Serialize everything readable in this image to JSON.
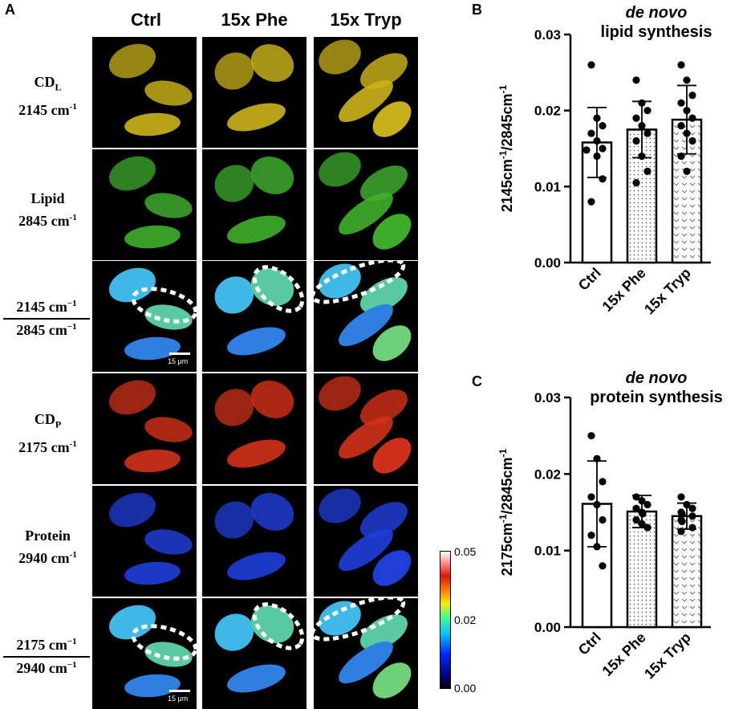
{
  "panel_a": {
    "letter": "A",
    "columns": [
      "Ctrl",
      "15x Phe",
      "15x Tryp"
    ],
    "rows": [
      {
        "label_main": "CD",
        "label_sub": "L",
        "label_line2": "2145 cm",
        "label_sup": "-1"
      },
      {
        "label_main": "Lipid",
        "label_line2": "2845 cm",
        "label_sup": "-1"
      },
      {
        "frac_num": "2145 cm",
        "frac_num_sup": "−1",
        "frac_den": "2845 cm",
        "frac_den_sup": "−1"
      },
      {
        "label_main": "CD",
        "label_sub": "P",
        "label_line2": "2175 cm",
        "label_sup": "-1"
      },
      {
        "label_main": "Protein",
        "label_line2": "2940 cm",
        "label_sup": "-1"
      },
      {
        "frac_num": "2175 cm",
        "frac_num_sup": "−1",
        "frac_den": "2940 cm",
        "frac_den_sup": "−1"
      }
    ],
    "scalebar_label": "15 μm",
    "colorbar": {
      "ticks": [
        "0.05",
        "0.02",
        "0.00"
      ]
    },
    "colors": {
      "yellow": "#c9b21a",
      "green": "#3fae2c",
      "red": "#d03018",
      "blue": "#1f3fd8"
    }
  },
  "chart_data": [
    {
      "panel": "B",
      "type": "bar",
      "title_line1": "de novo",
      "title_line2": "lipid synthesis",
      "ylabel_main": "2145cm",
      "ylabel_sup1": "-1",
      "ylabel_mid": "/2845cm",
      "ylabel_sup2": "-1",
      "categories": [
        "Ctrl",
        "15x Phe",
        "15x Tryp"
      ],
      "values": [
        0.0158,
        0.0175,
        0.0188
      ],
      "errors": [
        0.0046,
        0.0037,
        0.0045
      ],
      "points": [
        [
          0.026,
          0.019,
          0.018,
          0.017,
          0.016,
          0.015,
          0.0148,
          0.014,
          0.011,
          0.008
        ],
        [
          0.024,
          0.021,
          0.02,
          0.019,
          0.018,
          0.017,
          0.016,
          0.014,
          0.012,
          0.0105
        ],
        [
          0.026,
          0.024,
          0.022,
          0.021,
          0.02,
          0.019,
          0.018,
          0.017,
          0.016,
          0.014,
          0.012
        ]
      ],
      "patterns": [
        "none",
        "dots",
        "chevrons"
      ],
      "ylim": [
        0,
        0.03
      ],
      "yticks": [
        "0.00",
        "0.01",
        "0.02",
        "0.03"
      ]
    },
    {
      "panel": "C",
      "type": "bar",
      "title_line1": "de novo",
      "title_line2": "protein synthesis",
      "ylabel_main": "2175cm",
      "ylabel_sup1": "-1",
      "ylabel_mid": "/2845cm",
      "ylabel_sup2": "-1",
      "categories": [
        "Ctrl",
        "15x Phe",
        "15x Tryp"
      ],
      "values": [
        0.0161,
        0.0151,
        0.0145
      ],
      "errors": [
        0.0056,
        0.0021,
        0.0017
      ],
      "points": [
        [
          0.025,
          0.022,
          0.019,
          0.017,
          0.016,
          0.014,
          0.012,
          0.0105,
          0.008
        ],
        [
          0.017,
          0.0165,
          0.016,
          0.0155,
          0.015,
          0.0148,
          0.014,
          0.0135,
          0.013
        ],
        [
          0.017,
          0.016,
          0.0155,
          0.015,
          0.0148,
          0.0145,
          0.014,
          0.0138,
          0.013,
          0.0125
        ]
      ],
      "patterns": [
        "none",
        "dots",
        "chevrons"
      ],
      "ylim": [
        0,
        0.03
      ],
      "yticks": [
        "0.00",
        "0.01",
        "0.02",
        "0.03"
      ]
    }
  ]
}
